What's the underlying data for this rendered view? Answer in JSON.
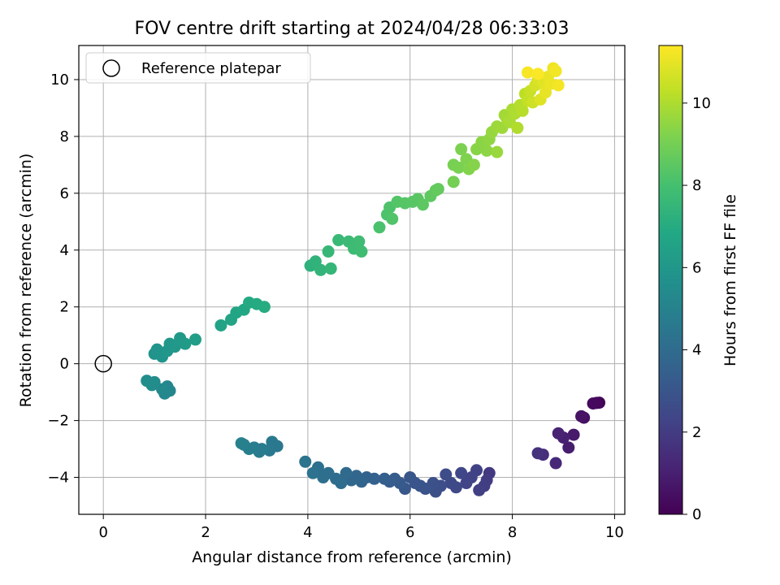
{
  "chart_data": {
    "type": "scatter",
    "title": "FOV centre drift starting at 2024/04/28 06:33:03",
    "xlabel": "Angular distance from reference (arcmin)",
    "ylabel": "Rotation from reference (arcmin)",
    "xlim": [
      -0.48,
      10.2
    ],
    "ylim": [
      -5.3,
      11.2
    ],
    "xticks": [
      0,
      2,
      4,
      6,
      8,
      10
    ],
    "yticks": [
      -4,
      -2,
      0,
      2,
      4,
      6,
      8,
      10
    ],
    "xtick_labels": [
      "0",
      "2",
      "4",
      "6",
      "8",
      "10"
    ],
    "ytick_labels": [
      "−4",
      "−2",
      "0",
      "2",
      "4",
      "6",
      "8",
      "10"
    ],
    "grid": true,
    "legend_position": "top-left",
    "legend": {
      "label": "Reference platepar"
    },
    "reference_point": {
      "x": 0,
      "y": 0
    },
    "colorbar": {
      "label": "Hours from first FF file",
      "range": [
        0,
        11.4
      ],
      "ticks": [
        0,
        2,
        4,
        6,
        8,
        10
      ],
      "tick_labels": [
        "0",
        "2",
        "4",
        "6",
        "8",
        "10"
      ],
      "colormap": "viridis"
    },
    "series": [
      {
        "points": [
          [
            9.7,
            -1.37,
            0.1
          ],
          [
            9.65,
            -1.38,
            0.2
          ],
          [
            9.58,
            -1.4,
            0.3
          ],
          [
            9.4,
            -1.9,
            0.5
          ],
          [
            9.35,
            -1.85,
            0.6
          ],
          [
            9.2,
            -2.5,
            0.8
          ],
          [
            9.1,
            -2.95,
            0.9
          ],
          [
            9.0,
            -2.6,
            1.0
          ],
          [
            8.9,
            -2.45,
            1.1
          ],
          [
            8.85,
            -3.5,
            1.3
          ],
          [
            8.6,
            -3.2,
            1.5
          ],
          [
            8.5,
            -3.15,
            1.6
          ],
          [
            7.55,
            -3.85,
            1.9
          ],
          [
            7.5,
            -4.1,
            2.0
          ],
          [
            7.45,
            -4.3,
            2.05
          ],
          [
            7.35,
            -4.45,
            2.1
          ],
          [
            7.3,
            -3.75,
            2.2
          ],
          [
            7.2,
            -4.0,
            2.25
          ],
          [
            7.1,
            -4.2,
            2.3
          ],
          [
            7.0,
            -3.85,
            2.4
          ],
          [
            6.9,
            -4.35,
            2.5
          ],
          [
            6.8,
            -4.2,
            2.55
          ],
          [
            6.7,
            -3.9,
            2.6
          ],
          [
            6.6,
            -4.3,
            2.7
          ],
          [
            6.5,
            -4.5,
            2.75
          ],
          [
            6.45,
            -4.2,
            2.8
          ],
          [
            6.3,
            -4.4,
            2.9
          ],
          [
            6.2,
            -4.3,
            2.95
          ],
          [
            6.1,
            -4.2,
            3.0
          ],
          [
            6.0,
            -4.0,
            3.05
          ],
          [
            5.9,
            -4.4,
            3.1
          ],
          [
            5.8,
            -4.2,
            3.2
          ],
          [
            5.7,
            -4.05,
            3.3
          ],
          [
            5.6,
            -4.15,
            3.35
          ],
          [
            5.5,
            -4.05,
            3.4
          ],
          [
            5.3,
            -4.05,
            3.5
          ],
          [
            5.15,
            -4.0,
            3.6
          ],
          [
            5.05,
            -4.15,
            3.7
          ],
          [
            4.95,
            -3.95,
            3.75
          ],
          [
            4.85,
            -4.1,
            3.8
          ],
          [
            4.75,
            -3.85,
            3.9
          ],
          [
            4.65,
            -4.2,
            4.0
          ],
          [
            4.55,
            -4.05,
            4.05
          ],
          [
            4.4,
            -3.85,
            4.1
          ],
          [
            4.3,
            -4.0,
            4.15
          ],
          [
            4.2,
            -3.65,
            4.2
          ],
          [
            4.1,
            -3.85,
            4.3
          ],
          [
            3.95,
            -3.45,
            4.35
          ],
          [
            3.4,
            -2.9,
            4.5
          ],
          [
            3.3,
            -2.75,
            4.55
          ],
          [
            3.25,
            -3.05,
            4.6
          ],
          [
            3.1,
            -3.0,
            4.7
          ],
          [
            3.05,
            -3.1,
            4.75
          ],
          [
            2.95,
            -2.95,
            4.8
          ],
          [
            2.85,
            -3.0,
            4.85
          ],
          [
            2.75,
            -2.85,
            4.9
          ],
          [
            2.7,
            -2.8,
            4.95
          ],
          [
            1.3,
            -0.95,
            5.2
          ],
          [
            1.25,
            -0.8,
            5.25
          ],
          [
            1.2,
            -1.05,
            5.3
          ],
          [
            1.15,
            -0.9,
            5.35
          ],
          [
            1.0,
            -0.65,
            5.45
          ],
          [
            0.95,
            -0.75,
            5.5
          ],
          [
            0.85,
            -0.6,
            5.55
          ],
          [
            1.0,
            0.35,
            5.8
          ],
          [
            1.05,
            0.5,
            5.85
          ],
          [
            1.15,
            0.25,
            5.9
          ],
          [
            1.25,
            0.45,
            5.95
          ],
          [
            1.3,
            0.7,
            6.0
          ],
          [
            1.4,
            0.6,
            6.05
          ],
          [
            1.5,
            0.9,
            6.1
          ],
          [
            1.6,
            0.7,
            6.2
          ],
          [
            1.8,
            0.85,
            6.3
          ],
          [
            2.3,
            1.35,
            6.6
          ],
          [
            2.5,
            1.55,
            6.65
          ],
          [
            2.6,
            1.8,
            6.7
          ],
          [
            2.75,
            1.9,
            6.8
          ],
          [
            2.85,
            2.15,
            6.9
          ],
          [
            3.0,
            2.1,
            6.95
          ],
          [
            3.15,
            2.0,
            7.0
          ],
          [
            4.05,
            3.45,
            7.3
          ],
          [
            4.15,
            3.6,
            7.35
          ],
          [
            4.25,
            3.3,
            7.4
          ],
          [
            4.45,
            3.35,
            7.5
          ],
          [
            4.4,
            3.95,
            7.55
          ],
          [
            4.6,
            4.35,
            7.65
          ],
          [
            4.8,
            4.3,
            7.7
          ],
          [
            4.9,
            4.05,
            7.75
          ],
          [
            5.0,
            4.3,
            7.8
          ],
          [
            5.05,
            3.95,
            7.85
          ],
          [
            5.4,
            4.8,
            8.1
          ],
          [
            5.55,
            5.25,
            8.15
          ],
          [
            5.6,
            5.5,
            8.2
          ],
          [
            5.65,
            5.1,
            8.25
          ],
          [
            5.75,
            5.7,
            8.3
          ],
          [
            5.9,
            5.65,
            8.35
          ],
          [
            6.05,
            5.7,
            8.4
          ],
          [
            6.15,
            5.8,
            8.45
          ],
          [
            6.25,
            5.6,
            8.5
          ],
          [
            6.4,
            5.9,
            8.55
          ],
          [
            6.5,
            6.1,
            8.6
          ],
          [
            6.55,
            6.15,
            8.65
          ],
          [
            6.85,
            6.4,
            9.0
          ],
          [
            6.85,
            7.0,
            9.05
          ],
          [
            6.95,
            6.9,
            9.1
          ],
          [
            7.0,
            7.55,
            9.15
          ],
          [
            7.1,
            7.2,
            9.2
          ],
          [
            7.15,
            6.85,
            9.25
          ],
          [
            7.25,
            7.0,
            9.3
          ],
          [
            7.3,
            7.55,
            9.35
          ],
          [
            7.4,
            7.8,
            9.4
          ],
          [
            7.5,
            7.5,
            9.45
          ],
          [
            7.55,
            7.9,
            9.5
          ],
          [
            7.6,
            8.15,
            9.6
          ],
          [
            7.7,
            7.45,
            9.65
          ],
          [
            7.7,
            8.35,
            9.7
          ],
          [
            7.8,
            8.3,
            9.75
          ],
          [
            7.85,
            8.75,
            9.8
          ],
          [
            7.9,
            8.6,
            9.85
          ],
          [
            7.95,
            8.5,
            9.9
          ],
          [
            8.0,
            8.95,
            9.95
          ],
          [
            8.05,
            8.8,
            10.0
          ],
          [
            8.1,
            8.3,
            10.05
          ],
          [
            8.15,
            9.1,
            10.1
          ],
          [
            8.2,
            8.9,
            10.15
          ],
          [
            8.25,
            9.5,
            10.25
          ],
          [
            8.3,
            9.25,
            10.35
          ],
          [
            8.35,
            9.6,
            10.45
          ],
          [
            8.4,
            9.2,
            10.55
          ],
          [
            8.45,
            9.8,
            10.65
          ],
          [
            8.5,
            10.0,
            10.75
          ],
          [
            8.55,
            9.3,
            10.85
          ],
          [
            8.6,
            9.9,
            10.9
          ],
          [
            8.65,
            9.55,
            11.0
          ],
          [
            8.7,
            10.1,
            11.05
          ],
          [
            8.75,
            9.85,
            11.1
          ],
          [
            8.8,
            10.4,
            11.15
          ],
          [
            8.85,
            10.3,
            11.2
          ],
          [
            8.9,
            9.8,
            11.25
          ],
          [
            8.3,
            10.25,
            11.3
          ],
          [
            8.5,
            10.2,
            11.35
          ]
        ]
      }
    ]
  }
}
